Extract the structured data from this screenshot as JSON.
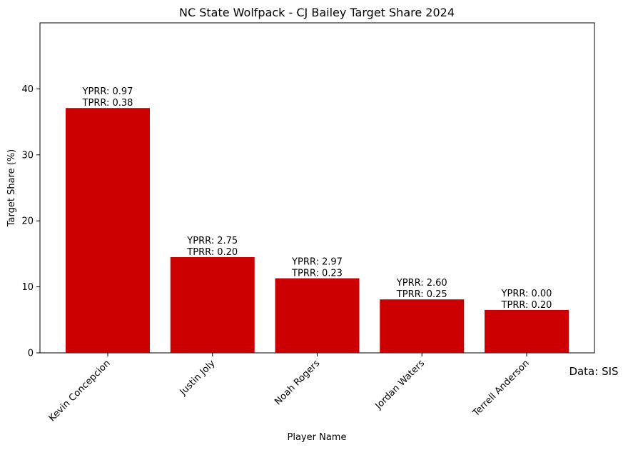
{
  "chart_data": {
    "type": "bar",
    "title": "NC State Wolfpack - CJ Bailey Target Share 2024",
    "xlabel": "Player Name",
    "ylabel": "Target Share (%)",
    "ylim": [
      0,
      50
    ],
    "yticks": [
      0,
      10,
      20,
      30,
      40
    ],
    "grid": false,
    "bar_color": "#cc0000",
    "categories": [
      "Kevin Concepcion",
      "Justin Joly",
      "Noah Rogers",
      "Jordan Waters",
      "Terrell Anderson"
    ],
    "values": [
      37.1,
      14.5,
      11.3,
      8.1,
      6.5
    ],
    "annotations": [
      [
        "YPRR: 0.97",
        "TPRR: 0.38"
      ],
      [
        "YPRR: 2.75",
        "TPRR: 0.20"
      ],
      [
        "YPRR: 2.97",
        "TPRR: 0.23"
      ],
      [
        "YPRR: 2.60",
        "TPRR: 0.25"
      ],
      [
        "YPRR: 0.00",
        "TPRR: 0.20"
      ]
    ],
    "source": "Data: SIS"
  }
}
